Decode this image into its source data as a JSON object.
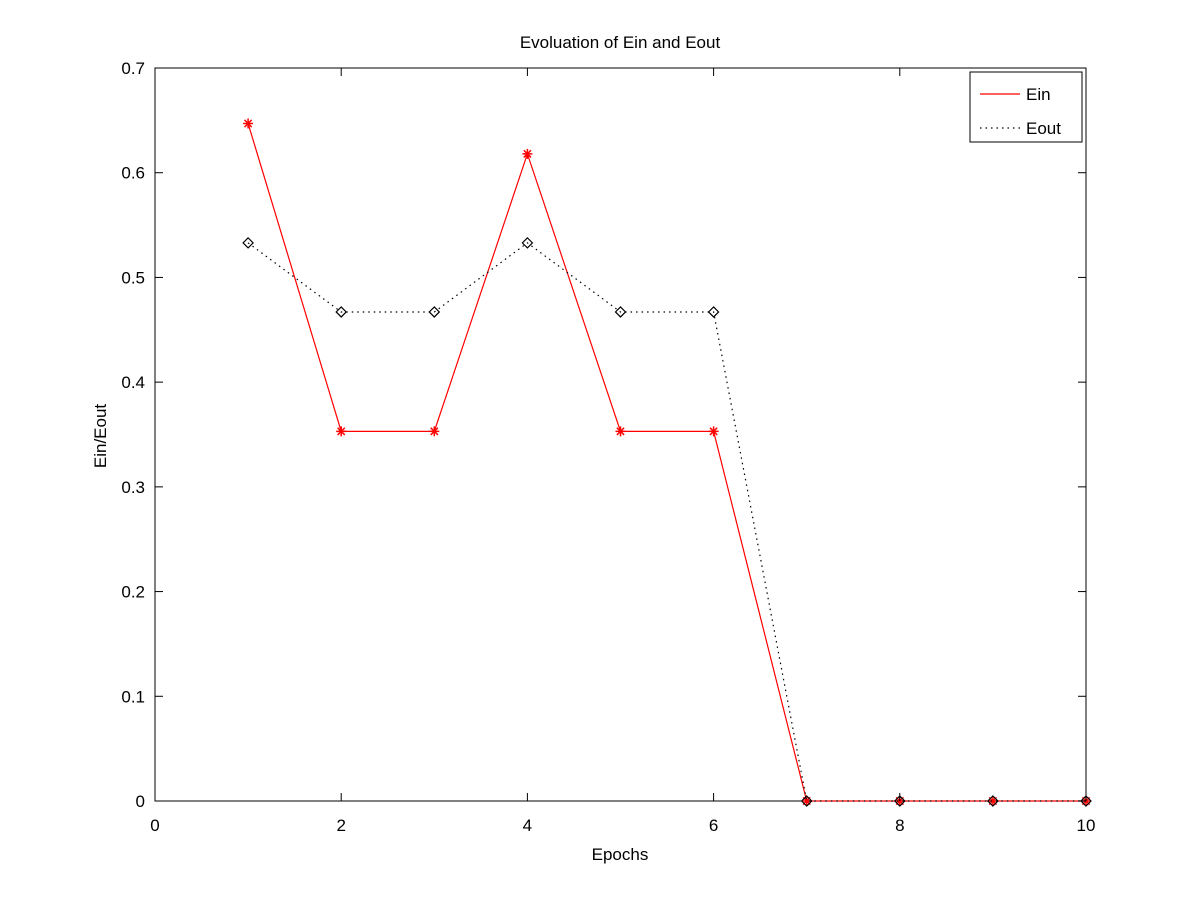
{
  "chart_data": {
    "type": "line",
    "title": "Evoluation of Ein and Eout",
    "xlabel": "Epochs",
    "ylabel": "Ein/Eout",
    "xlim": [
      0,
      10
    ],
    "ylim": [
      0,
      0.7
    ],
    "xticks": [
      0,
      2,
      4,
      6,
      8,
      10
    ],
    "xtick_labels": [
      "0",
      "2",
      "4",
      "6",
      "8",
      "10"
    ],
    "yticks": [
      0,
      0.1,
      0.2,
      0.3,
      0.4,
      0.5,
      0.6,
      0.7
    ],
    "ytick_labels": [
      "0",
      "0.1",
      "0.2",
      "0.3",
      "0.4",
      "0.5",
      "0.6",
      "0.7"
    ],
    "grid": false,
    "legend_position": "top-right",
    "x": [
      1,
      2,
      3,
      4,
      5,
      6,
      7,
      8,
      9,
      10
    ],
    "series": [
      {
        "name": "Ein",
        "values": [
          0.647,
          0.353,
          0.353,
          0.618,
          0.353,
          0.353,
          0,
          0,
          0,
          0
        ],
        "color": "#ff0000",
        "line_style": "solid",
        "marker": "asterisk"
      },
      {
        "name": "Eout",
        "values": [
          0.533,
          0.467,
          0.467,
          0.533,
          0.467,
          0.467,
          0,
          0,
          0,
          0
        ],
        "color": "#000000",
        "line_style": "dotted",
        "marker": "diamond"
      }
    ]
  }
}
